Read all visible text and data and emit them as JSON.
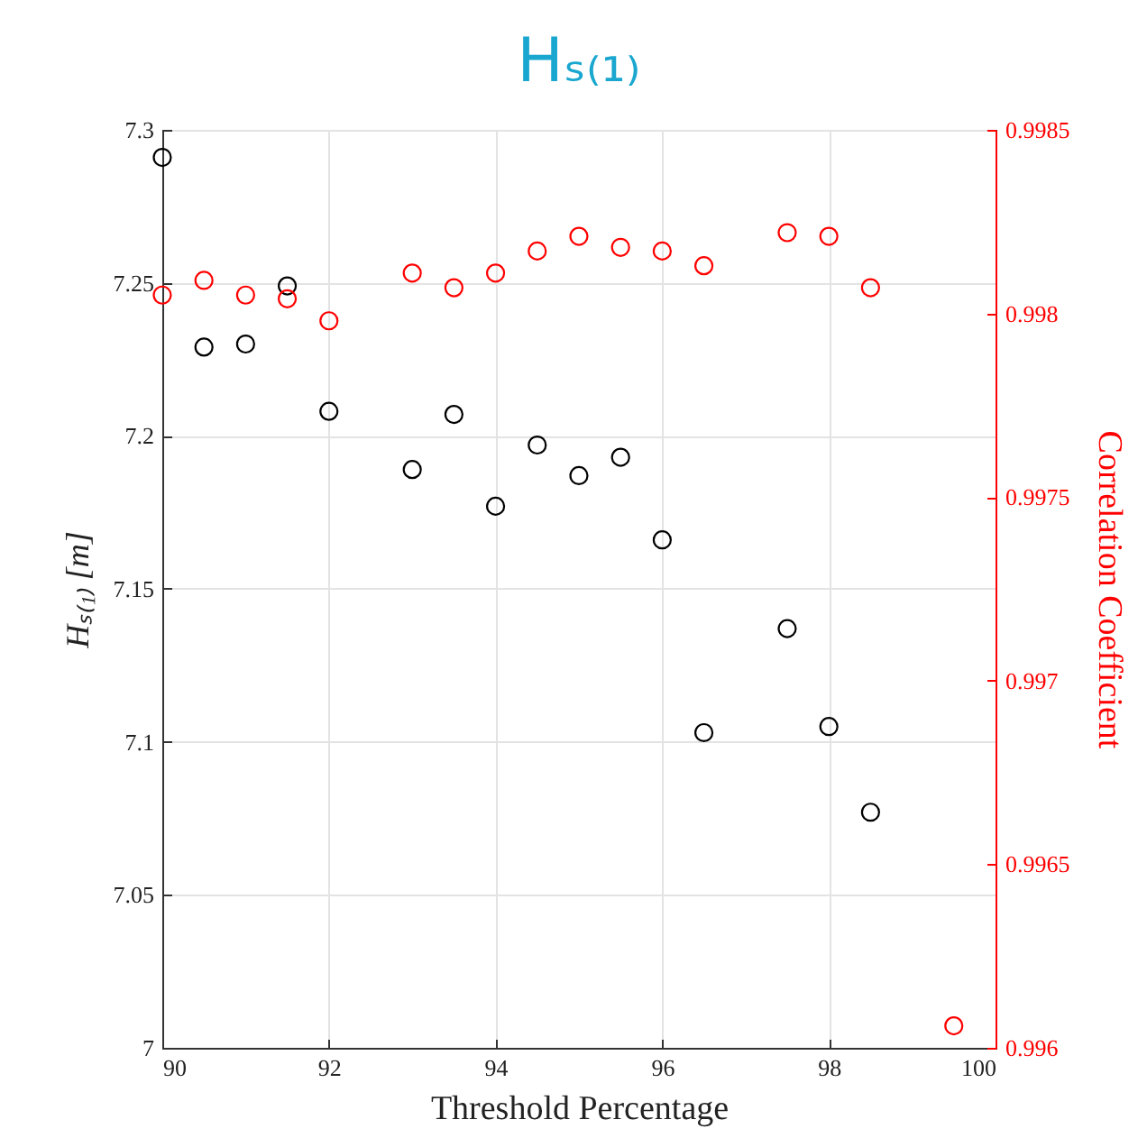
{
  "chart_data": {
    "type": "scatter",
    "title": "Hₛ₍₁₎",
    "xlabel": "Threshold Percentage",
    "ylabel": "Hₛ₍₁₎ [m]",
    "y2label": "Correlation Coefficient",
    "xlim": [
      90,
      100
    ],
    "xticks": [
      90,
      92,
      94,
      96,
      98,
      100
    ],
    "ylim": [
      7,
      7.3
    ],
    "yticks": [
      7,
      7.05,
      7.1,
      7.15,
      7.2,
      7.25,
      7.3
    ],
    "y2lim": [
      0.996,
      0.9985
    ],
    "y2ticks": [
      0.996,
      0.9965,
      0.997,
      0.9975,
      0.998,
      0.9985
    ],
    "grid": true,
    "marker": "circle",
    "series": [
      {
        "color": "#000000",
        "x": [
          90,
          90.5,
          91,
          91.5,
          92,
          93,
          93.5,
          94,
          94.5,
          95,
          95.5,
          96,
          96.5,
          97.5,
          98,
          98.5
        ],
        "values": [
          7.291,
          7.229,
          7.23,
          7.249,
          7.208,
          7.189,
          7.207,
          7.177,
          7.197,
          7.187,
          7.193,
          7.166,
          7.103,
          7.137,
          7.105,
          7.077
        ]
      },
      {
        "color": "#ff0000",
        "axis": "y2",
        "x": [
          90,
          90.5,
          91,
          91.5,
          92,
          93,
          93.5,
          94,
          94.5,
          95,
          95.5,
          96,
          96.5,
          97.5,
          98,
          98.5,
          99.5
        ],
        "values": [
          0.99805,
          0.99809,
          0.99805,
          0.99804,
          0.99798,
          0.99811,
          0.99807,
          0.99811,
          0.99817,
          0.99821,
          0.99818,
          0.99817,
          0.99813,
          0.99822,
          0.99821,
          0.99807,
          0.99606
        ]
      }
    ]
  }
}
